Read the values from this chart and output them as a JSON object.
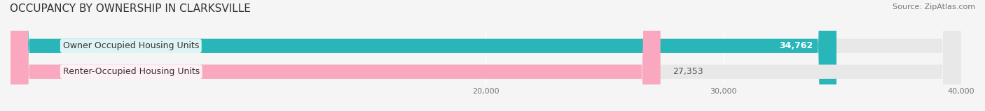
{
  "title": "OCCUPANCY BY OWNERSHIP IN CLARKSVILLE",
  "source_text": "Source: ZipAtlas.com",
  "categories": [
    "Owner Occupied Housing Units",
    "Renter-Occupied Housing Units"
  ],
  "values": [
    34762,
    27353
  ],
  "bar_colors": [
    "#29b6b8",
    "#f9a8c0"
  ],
  "label_colors": [
    "white",
    "#555555"
  ],
  "xlim": [
    0,
    40000
  ],
  "xticks": [
    20000,
    30000,
    40000
  ],
  "xtick_labels": [
    "20,000",
    "30,000",
    "40,000"
  ],
  "bar_height": 0.55,
  "background_color": "#f5f5f5",
  "bar_bg_color": "#e8e8e8",
  "title_fontsize": 11,
  "label_fontsize": 9,
  "value_fontsize": 9,
  "source_fontsize": 8
}
